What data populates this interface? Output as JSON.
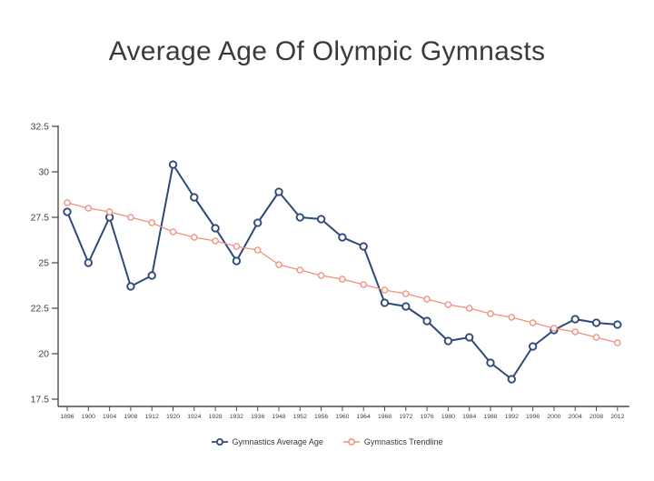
{
  "title": "Average Age Of Olympic Gymnasts",
  "legend": [
    {
      "label": "Gymnastics Average Age",
      "series_key": "average_age"
    },
    {
      "label": "Gymnastics Trendline",
      "series_key": "trendline"
    }
  ],
  "colors": {
    "average_age": "#2e4a77",
    "trendline": "#f0917e",
    "axis": "#4d4d4d",
    "tick_label": "#3f3f3f",
    "title_text": "#3a3a3a",
    "legend_text": "#33373d",
    "marker_fill": "#ffffff",
    "background": "#ffffff"
  },
  "chart_data": {
    "type": "line",
    "title": "Average Age Of Olympic Gymnasts",
    "xlabel": "",
    "ylabel": "",
    "categories": [
      "1896",
      "1900",
      "1904",
      "1908",
      "1912",
      "1920",
      "1924",
      "1928",
      "1932",
      "1936",
      "1948",
      "1952",
      "1956",
      "1960",
      "1964",
      "1968",
      "1972",
      "1976",
      "1980",
      "1984",
      "1988",
      "1992",
      "1996",
      "2000",
      "2004",
      "2008",
      "2012"
    ],
    "series": [
      {
        "name": "Gymnastics Average Age",
        "color_key": "average_age",
        "values": [
          27.8,
          25.0,
          27.5,
          23.7,
          24.3,
          30.4,
          28.6,
          26.9,
          25.1,
          27.2,
          28.9,
          27.5,
          27.4,
          26.4,
          25.9,
          22.8,
          22.6,
          21.8,
          20.7,
          20.9,
          19.5,
          18.6,
          20.4,
          21.3,
          21.9,
          21.7,
          21.6
        ]
      },
      {
        "name": "Gymnastics Trendline",
        "color_key": "trendline",
        "values": [
          28.3,
          28.0,
          27.8,
          27.5,
          27.2,
          26.7,
          26.4,
          26.2,
          25.9,
          25.7,
          24.9,
          24.6,
          24.3,
          24.1,
          23.8,
          23.5,
          23.3,
          23.0,
          22.7,
          22.5,
          22.2,
          22.0,
          21.7,
          21.4,
          21.2,
          20.9,
          20.6
        ]
      }
    ],
    "ylim": [
      17.5,
      32.5
    ],
    "yticks": [
      32.5,
      30,
      27.5,
      25,
      22.5,
      20,
      17.5
    ],
    "ytick_labels": [
      "32.5",
      "30",
      "27.5",
      "25",
      "22.5",
      "20",
      "17.5"
    ],
    "grid": false,
    "marker_style": "open-circle",
    "legend_position": "bottom-center"
  }
}
